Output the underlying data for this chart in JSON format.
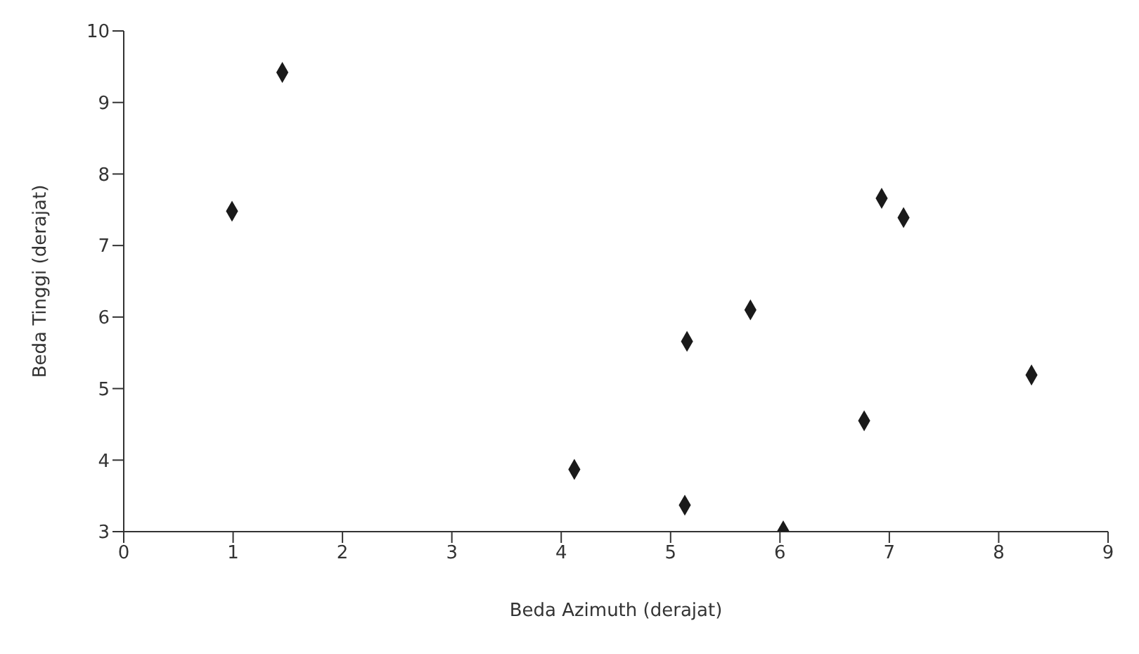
{
  "chart_data": {
    "type": "scatter",
    "xlabel": "Beda Azimuth (derajat)",
    "ylabel": "Beda Tinggi (derajat)",
    "x": [
      0.99,
      1.45,
      4.12,
      5.15,
      5.13,
      5.73,
      6.03,
      6.77,
      6.93,
      7.13,
      8.3
    ],
    "values": [
      7.48,
      9.42,
      3.87,
      5.66,
      3.37,
      6.1,
      3.01,
      4.55,
      7.66,
      7.39,
      5.19
    ],
    "color": "#1a1a1a",
    "marker": "diamond",
    "grid": false,
    "legend": false,
    "xlim": [
      0,
      9
    ],
    "xticks": [
      0,
      1,
      2,
      3,
      4,
      5,
      6,
      7,
      8,
      9
    ],
    "ylim": [
      3,
      10
    ],
    "yticks": [
      3,
      4,
      5,
      6,
      7,
      8,
      9,
      10
    ]
  }
}
